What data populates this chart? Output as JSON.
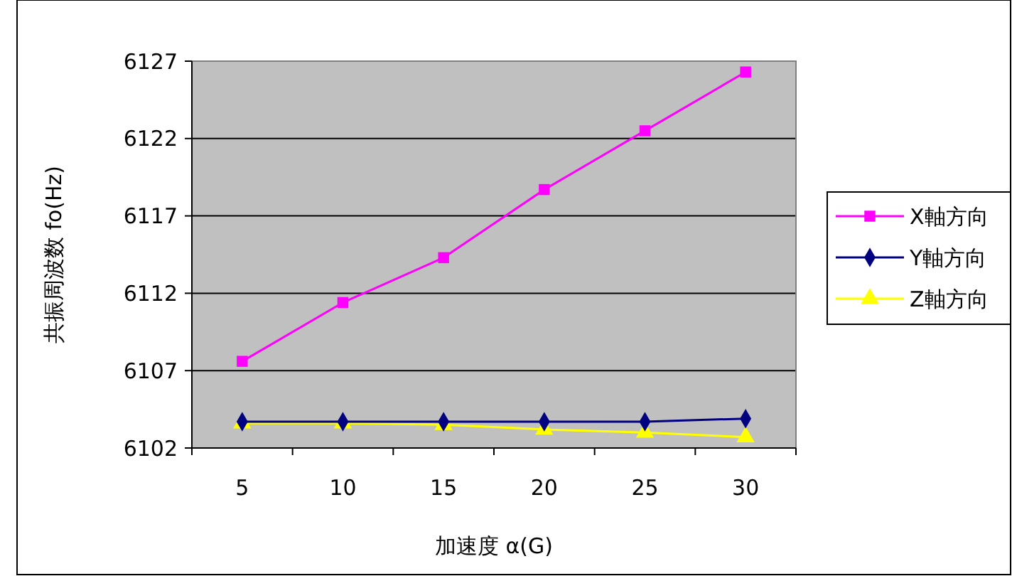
{
  "chart_data": {
    "type": "line",
    "xlabel": "加速度 α(G)",
    "ylabel": "共振周波数 fo(Hz)",
    "categories": [
      "5",
      "10",
      "15",
      "20",
      "25",
      "30"
    ],
    "series": [
      {
        "name": "X軸方向",
        "color": "#ff00ff",
        "marker": "square",
        "values": [
          6107.6,
          6111.4,
          6114.3,
          6118.7,
          6122.5,
          6126.3
        ]
      },
      {
        "name": "Y軸方向",
        "color": "#000080",
        "marker": "diamond",
        "values": [
          6103.7,
          6103.7,
          6103.7,
          6103.7,
          6103.7,
          6103.9
        ]
      },
      {
        "name": "Z軸方向",
        "color": "#ffff00",
        "marker": "triangle",
        "values": [
          6103.6,
          6103.6,
          6103.5,
          6103.2,
          6103.0,
          6102.7
        ]
      }
    ],
    "ylim": [
      6102,
      6127
    ],
    "yticks": [
      6102,
      6107,
      6112,
      6117,
      6122,
      6127
    ],
    "grid": "y",
    "legend": "right"
  }
}
